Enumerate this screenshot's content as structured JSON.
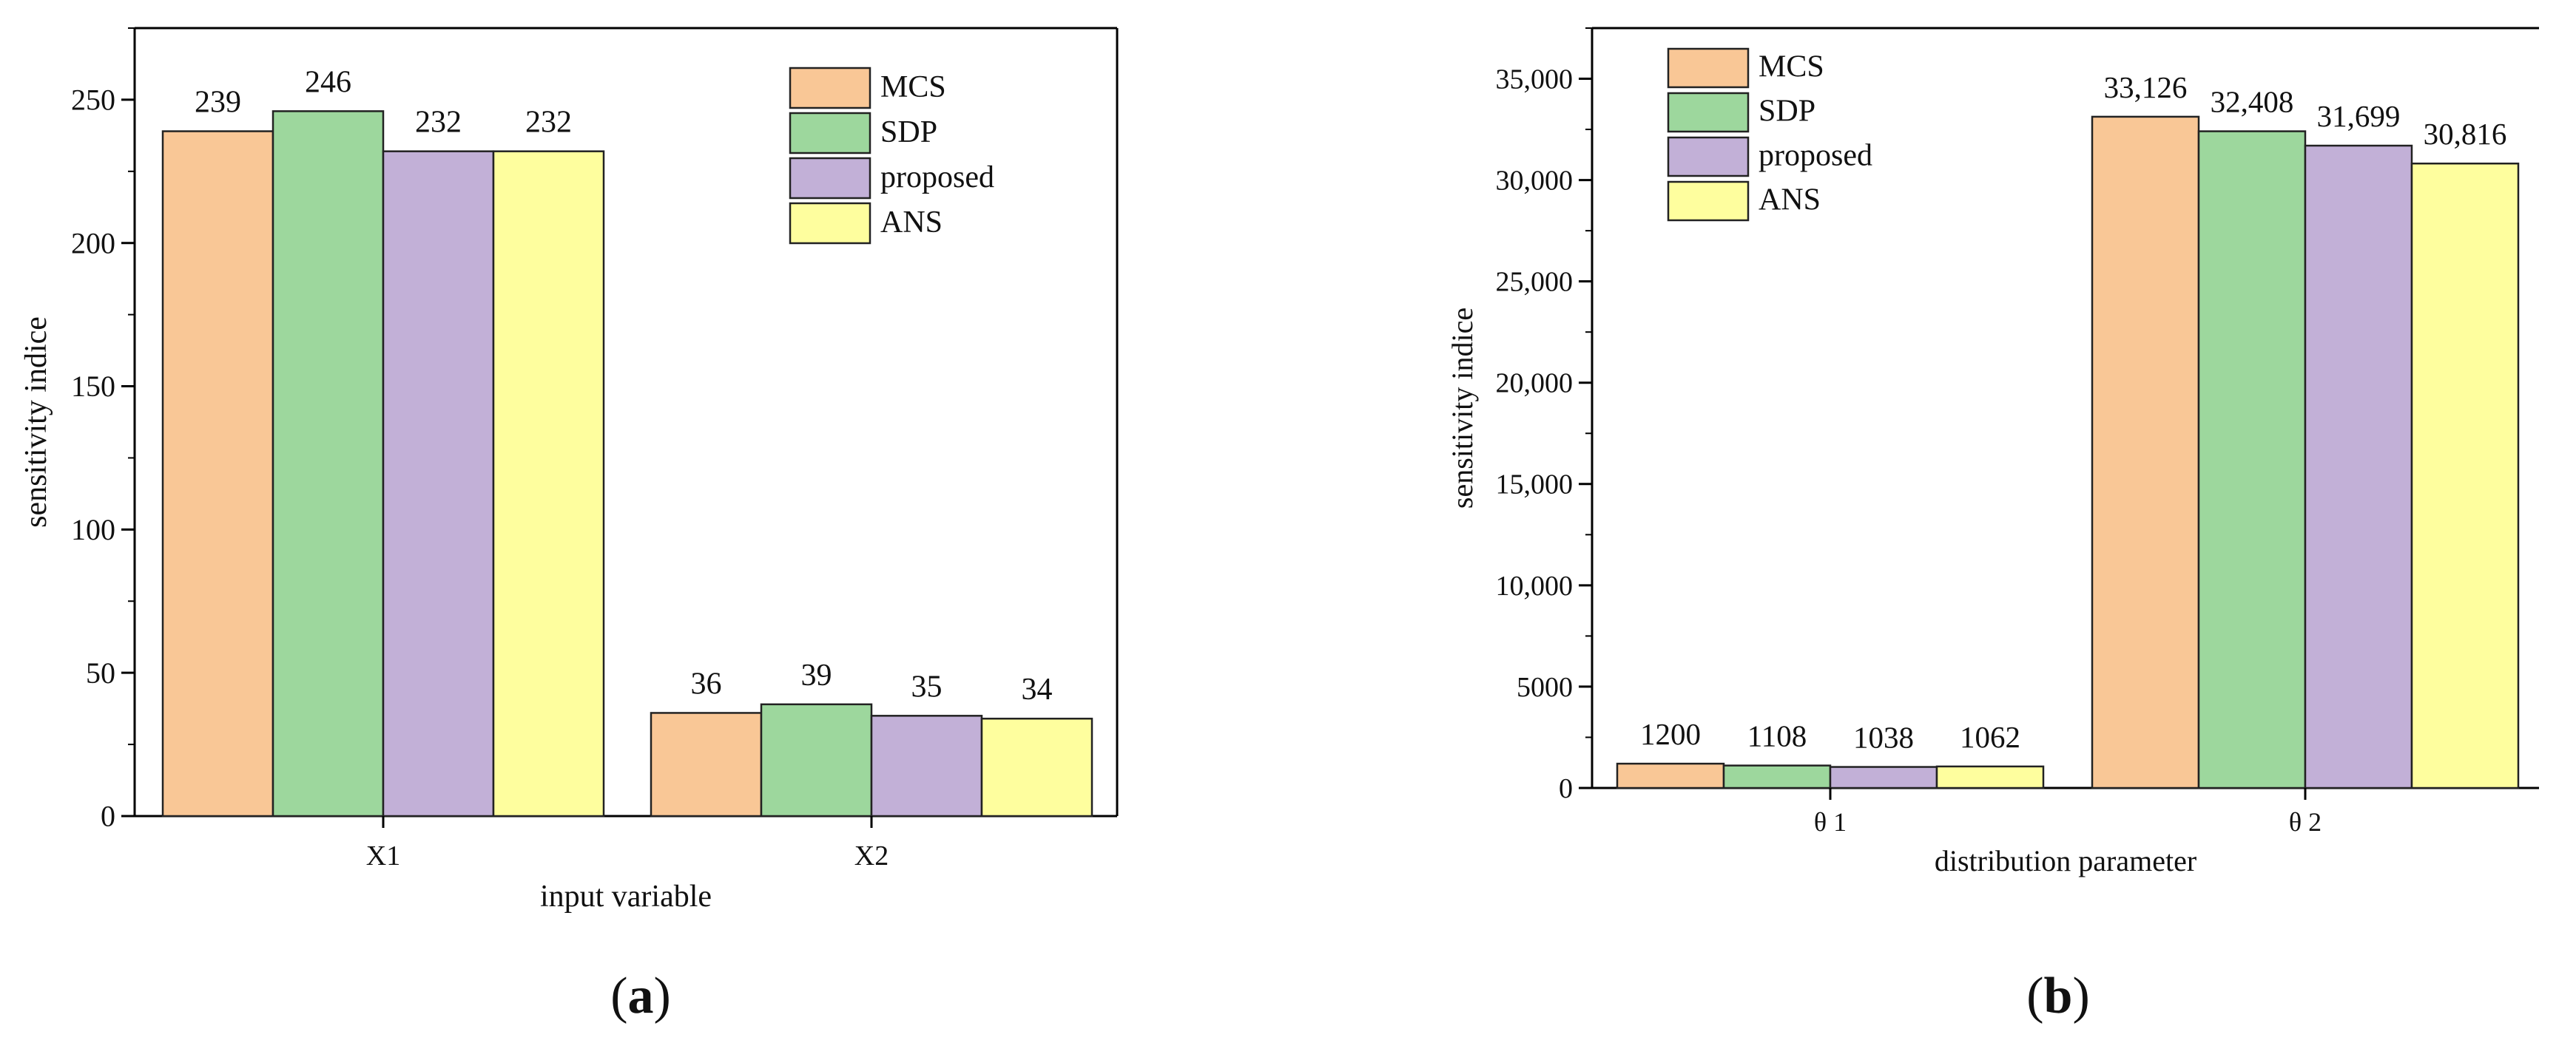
{
  "figure": {
    "panels": [
      {
        "label_open": "(",
        "label_letter": "a",
        "label_close": ")"
      },
      {
        "label_open": "(",
        "label_letter": "b",
        "label_close": ")"
      }
    ]
  },
  "colors": {
    "MCS": "#f9c796",
    "SDP": "#9dd79d",
    "proposed": "#c2b0d7",
    "ANS": "#fefe9e"
  },
  "chart_data": [
    {
      "type": "bar",
      "panel": "a",
      "title": "",
      "xlabel": "input variable",
      "ylabel": "sensitivity indice",
      "categories": [
        "X1",
        "X2"
      ],
      "series": [
        {
          "name": "MCS",
          "values": [
            239,
            36
          ]
        },
        {
          "name": "SDP",
          "values": [
            246,
            39
          ]
        },
        {
          "name": "proposed",
          "values": [
            232,
            35
          ]
        },
        {
          "name": "ANS",
          "values": [
            232,
            34
          ]
        }
      ],
      "data_labels": [
        [
          "239",
          "36"
        ],
        [
          "246",
          "39"
        ],
        [
          "232",
          "35"
        ],
        [
          "232",
          "34"
        ]
      ],
      "ylim": [
        0,
        275
      ],
      "yticks": [
        0,
        50,
        100,
        150,
        200,
        250
      ],
      "ytick_labels": [
        "0",
        "50",
        "100",
        "150",
        "200",
        "250"
      ],
      "legend_position": "top-right",
      "grid": false
    },
    {
      "type": "bar",
      "panel": "b",
      "title": "",
      "xlabel": "distribution parameter",
      "ylabel": "sensitivity indice",
      "categories": [
        "θ 1",
        "θ 2"
      ],
      "series": [
        {
          "name": "MCS",
          "values": [
            1200,
            33126
          ]
        },
        {
          "name": "SDP",
          "values": [
            1108,
            32408
          ]
        },
        {
          "name": "proposed",
          "values": [
            1038,
            31699
          ]
        },
        {
          "name": "ANS",
          "values": [
            1062,
            30816
          ]
        }
      ],
      "data_labels": [
        [
          "1200",
          "33,126"
        ],
        [
          "1108",
          "32,408"
        ],
        [
          "1038",
          "31,699"
        ],
        [
          "1062",
          "30,816"
        ]
      ],
      "ylim": [
        0,
        37500
      ],
      "yticks": [
        0,
        5000,
        10000,
        15000,
        20000,
        25000,
        30000,
        35000
      ],
      "ytick_labels": [
        "0",
        "5000",
        "10,000",
        "15,000",
        "20,000",
        "25,000",
        "30,000",
        "35,000"
      ],
      "legend_position": "top-left",
      "grid": false
    }
  ]
}
